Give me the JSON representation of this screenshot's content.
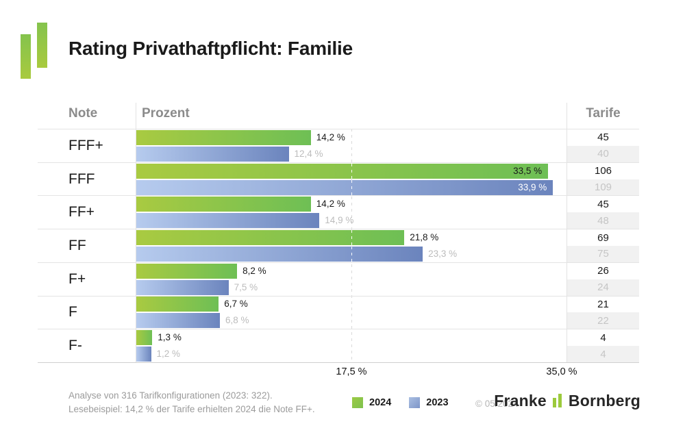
{
  "header": {
    "title": "Rating Privathaftpflicht: Familie"
  },
  "table": {
    "columns": [
      "Note",
      "Prozent",
      "Tarife"
    ]
  },
  "chart_data": {
    "type": "bar",
    "orientation": "horizontal",
    "title": "Rating Privathaftpflicht: Familie",
    "categories": [
      "FFF+",
      "FFF",
      "FF+",
      "FF",
      "F+",
      "F",
      "F-"
    ],
    "series": [
      {
        "name": "2024",
        "color_start": "#a9ca41",
        "color_end": "#6ebf55",
        "values": [
          14.2,
          33.5,
          14.2,
          21.8,
          8.2,
          6.7,
          1.3
        ],
        "value_labels": [
          "14,2 %",
          "33,5 %",
          "14,2 %",
          "21,8 %",
          "8,2 %",
          "6,7 %",
          "1,3 %"
        ],
        "tarife": [
          "45",
          "106",
          "45",
          "69",
          "26",
          "21",
          "4"
        ]
      },
      {
        "name": "2023",
        "color_start": "#b6cbee",
        "color_end": "#6b84bd",
        "values": [
          12.4,
          33.9,
          14.9,
          23.3,
          7.5,
          6.8,
          1.2
        ],
        "value_labels": [
          "12,4 %",
          "33,9 %",
          "14,9 %",
          "23,3 %",
          "7,5 %",
          "6,8 %",
          "1,2 %"
        ],
        "tarife": [
          "40",
          "109",
          "48",
          "75",
          "24",
          "22",
          "4"
        ]
      }
    ],
    "xlim": [
      0,
      35
    ],
    "ticks": [
      {
        "value": 17.5,
        "label": "17,5 %"
      },
      {
        "value": 35.0,
        "label": "35,0 %"
      }
    ],
    "gridline_value": 17.5,
    "grid": "dashed-vertical",
    "legend_position": "bottom"
  },
  "legend": {
    "items": [
      "2024",
      "2023"
    ]
  },
  "footer": {
    "line1": "Analyse von 316 Tarifkonfigurationen (2023: 322).",
    "line2": "Lesebeispiel: 14,2 % der Tarife erhielten 2024 die Note FF+.",
    "copyright": "© 05/2024",
    "brand_name_1": "Franke",
    "brand_name_2": "Bornberg"
  },
  "colors": {
    "green_light": "#a9ca41",
    "green_dark": "#6ebf55",
    "blue_light": "#b6cbee",
    "blue_dark": "#6b84bd",
    "brand_green": "#9cca3c"
  }
}
